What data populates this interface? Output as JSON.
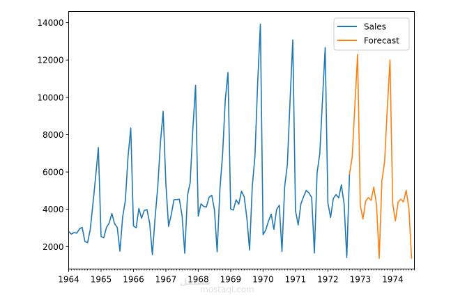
{
  "chart_data": {
    "type": "line",
    "title": "",
    "xlabel": "",
    "ylabel": "",
    "xlim": [
      1964.0,
      1974.67
    ],
    "ylim": [
      800,
      14600
    ],
    "x_ticks": [
      "1964",
      "1965",
      "1966",
      "1967",
      "1968",
      "1969",
      "1970",
      "1971",
      "1972",
      "1973",
      "1974"
    ],
    "y_ticks": [
      2000,
      4000,
      6000,
      8000,
      10000,
      12000,
      14000
    ],
    "legend_position": "top-right",
    "series": [
      {
        "name": "Sales",
        "color": "#1f77b4",
        "start": 1964.0,
        "step": 0.0833333,
        "values": [
          2815,
          2672,
          2755,
          2721,
          2946,
          3036,
          2282,
          2212,
          2922,
          4301,
          5764,
          7312,
          2541,
          2475,
          3031,
          3266,
          3776,
          3230,
          3028,
          1759,
          3595,
          4474,
          6838,
          8357,
          3113,
          3006,
          4047,
          3523,
          3937,
          3986,
          3260,
          1573,
          3528,
          5211,
          7614,
          9254,
          5375,
          3088,
          3718,
          4514,
          4520,
          4539,
          3663,
          1643,
          4739,
          5428,
          8314,
          10651,
          3633,
          4292,
          4154,
          4121,
          4647,
          4753,
          3965,
          1723,
          5048,
          6922,
          9858,
          11331,
          4016,
          3957,
          4510,
          4276,
          4968,
          4677,
          3523,
          1821,
          5222,
          6872,
          10803,
          13916,
          2639,
          2899,
          3370,
          3740,
          2927,
          3986,
          4217,
          1738,
          5221,
          6424,
          9842,
          13076,
          3934,
          3162,
          4286,
          4676,
          5010,
          4874,
          4633,
          1659,
          5951,
          6981,
          9851,
          12670,
          4348,
          3564,
          4577,
          4788,
          4618,
          5312,
          4298,
          1413,
          5877
        ]
      },
      {
        "name": "Forecast",
        "color": "#ff7f0e",
        "start": 1972.667,
        "step": 0.0833333,
        "values": [
          5877,
          6800,
          9600,
          12300,
          4200,
          3480,
          4450,
          4630,
          4480,
          5190,
          4250,
          1370,
          5530,
          6550,
          9400,
          12000,
          4310,
          3380,
          4380,
          4540,
          4400,
          5020,
          4050,
          1350
        ]
      }
    ]
  },
  "watermark": "mostaql.com"
}
